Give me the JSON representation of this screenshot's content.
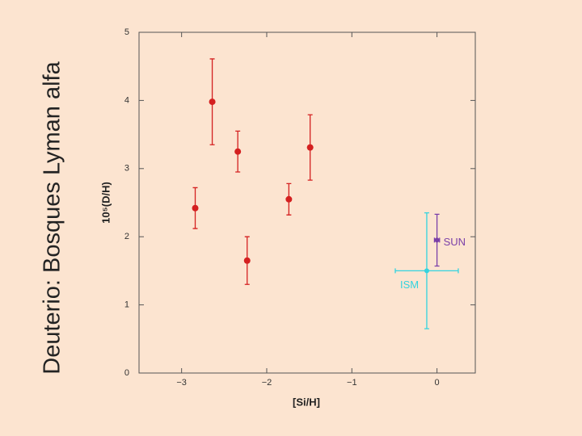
{
  "slide_title": "Deuterio: Bosques Lyman alfa",
  "chart_data": {
    "type": "scatter",
    "xlabel": "[Si/H]",
    "ylabel": "10⁵(D/H)",
    "xlim": [
      -3.5,
      0.45
    ],
    "ylim": [
      0,
      5
    ],
    "xticks": [
      {
        "value": -3,
        "label": "−3"
      },
      {
        "value": -2,
        "label": "−2"
      },
      {
        "value": -1,
        "label": "−1"
      },
      0
    ],
    "yticks": [
      0,
      1,
      2,
      3,
      4,
      5
    ],
    "series": [
      {
        "color": "#d42020",
        "x": [
          -2.84,
          -2.64,
          -2.34,
          -2.23,
          -1.74,
          -1.49
        ],
        "values": [
          2.42,
          3.98,
          3.25,
          1.65,
          2.55,
          3.31
        ],
        "yerr": [
          0.3,
          0.63,
          0.3,
          0.35,
          0.23,
          0.48
        ]
      },
      {
        "name": "SUN",
        "color": "#7a3fa8",
        "x": [
          0
        ],
        "values": [
          1.95
        ],
        "yerr": [
          0.38
        ],
        "xerr": [
          0.03
        ]
      },
      {
        "name": "ISM",
        "color": "#33d3df",
        "x": [
          -0.12
        ],
        "values": [
          1.5
        ],
        "yerr": [
          0.85
        ],
        "xerr": [
          0.37
        ]
      }
    ]
  }
}
